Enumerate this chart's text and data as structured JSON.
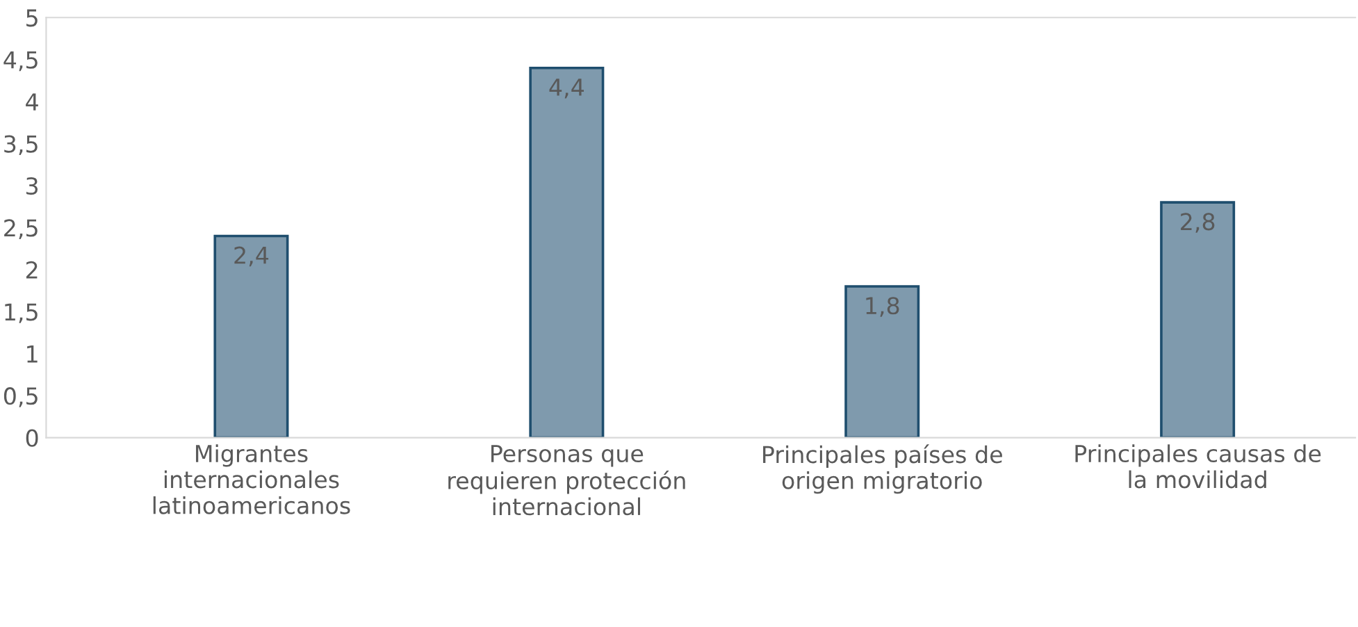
{
  "chart_data": {
    "type": "bar",
    "categories": [
      "Migrantes\ninternacionales\nlatinoamericanos",
      "Personas que\nrequieren protección\ninternacional",
      "Principales países de\norigen migratorio",
      "Principales causas de\nla movilidad"
    ],
    "values": [
      2.4,
      4.4,
      1.8,
      2.8
    ],
    "value_labels": [
      "2,4",
      "4,4",
      "1,8",
      "2,8"
    ],
    "color": "#7f9aad",
    "ylim": [
      0,
      5
    ],
    "yticks": [
      0,
      {
        "value": 0.5,
        "label": "0,5"
      },
      1,
      {
        "value": 1.5,
        "label": "1,5"
      },
      2,
      {
        "value": 2.5,
        "label": "2,5"
      },
      3,
      {
        "value": 3.5,
        "label": "3,5"
      },
      4,
      {
        "value": 4.5,
        "label": "4,5"
      },
      5
    ],
    "grid": false,
    "legend": false
  }
}
